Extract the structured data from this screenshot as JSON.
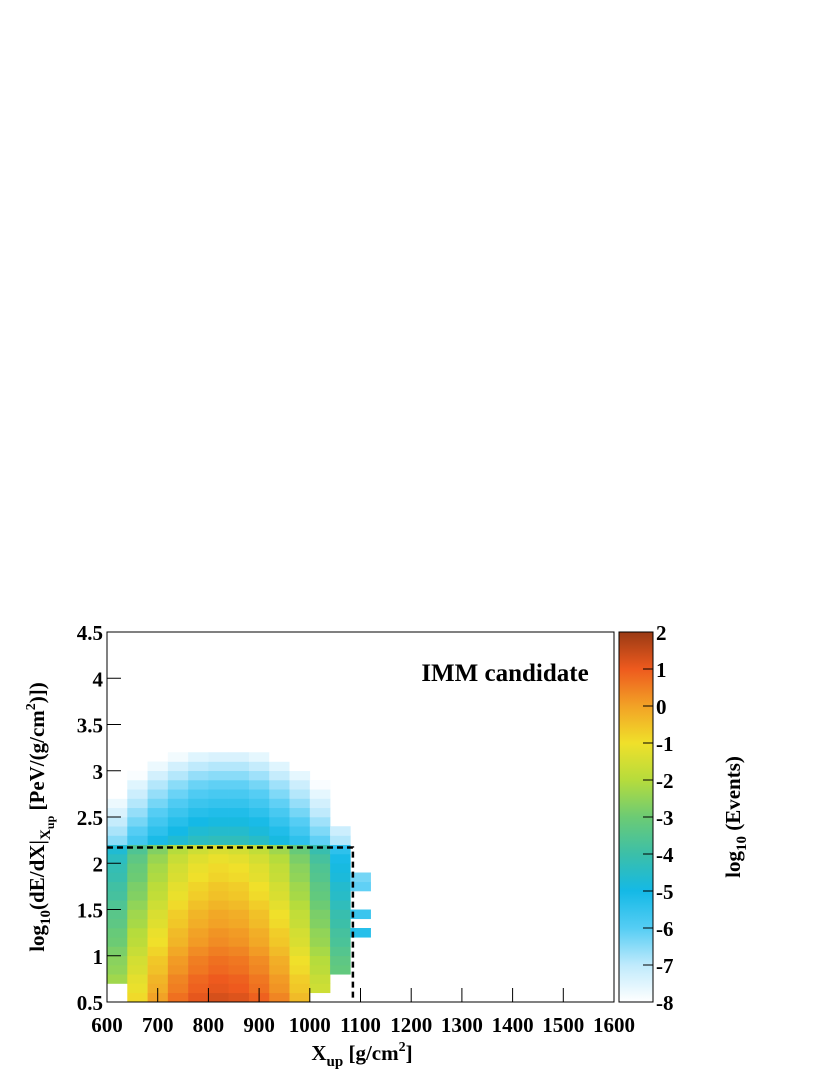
{
  "chart_data": {
    "type": "heatmap",
    "annotation": "IMM candidate",
    "xlabel": [
      {
        "text": "X",
        "script": ""
      },
      {
        "text": "up",
        "script": "sub"
      },
      {
        "text": " [g/cm",
        "script": ""
      },
      {
        "text": "2",
        "script": "sup"
      },
      {
        "text": "]",
        "script": ""
      }
    ],
    "ylabel": [
      {
        "text": "log",
        "script": ""
      },
      {
        "text": "10",
        "script": "sub"
      },
      {
        "text": "(dE/dX|",
        "script": ""
      },
      {
        "text": "X",
        "script": "sub"
      },
      {
        "text": "up",
        "script": "subsub"
      },
      {
        "text": " [PeV/(g/cm",
        "script": ""
      },
      {
        "text": "2",
        "script": "sup"
      },
      {
        "text": ")])",
        "script": ""
      }
    ],
    "zlabel": [
      {
        "text": "log",
        "script": ""
      },
      {
        "text": "10",
        "script": "sub"
      },
      {
        "text": " (Events)",
        "script": ""
      }
    ],
    "xlim": [
      600,
      1600
    ],
    "xticks": [
      600,
      700,
      800,
      900,
      1000,
      1100,
      1200,
      1300,
      1400,
      1500,
      1600
    ],
    "ylim": [
      0.5,
      4.5
    ],
    "yticks": [
      0.5,
      1,
      1.5,
      2,
      2.5,
      3,
      3.5,
      4,
      4.5
    ],
    "zlim": [
      -8,
      2
    ],
    "zticks": [
      -8,
      -7,
      -6,
      -5,
      -4,
      -3,
      -2,
      -1,
      0,
      1,
      2
    ],
    "palette": [
      "#ffffff",
      "#bfeafc",
      "#55cdf4",
      "#14b9e6",
      "#3cbfa8",
      "#6ccb74",
      "#b6dc3c",
      "#f0e02a",
      "#f2a226",
      "#ee5a1e",
      "#9a3a14"
    ],
    "cut": {
      "x": 1085,
      "y": 2.17,
      "color": "#000000"
    },
    "xbins": [
      600,
      640,
      680,
      720,
      760,
      800,
      840,
      880,
      920,
      960,
      1000,
      1040,
      1080,
      1120,
      1160,
      1200
    ],
    "ybins": [
      0.5,
      0.6,
      0.7,
      0.8,
      0.9,
      1.0,
      1.1,
      1.2,
      1.3,
      1.4,
      1.5,
      1.6,
      1.7,
      1.8,
      1.9,
      2.0,
      2.1,
      2.2,
      2.3,
      2.4,
      2.5,
      2.6,
      2.7,
      2.8,
      2.9,
      3.0,
      3.1,
      3.2
    ],
    "z": [
      [
        null,
        -0.9,
        0.0,
        0.7,
        1.1,
        1.3,
        1.2,
        0.9,
        0.4,
        -0.4,
        null,
        null,
        null,
        null,
        null
      ],
      [
        null,
        -1.1,
        -0.2,
        0.5,
        0.9,
        1.1,
        1.0,
        0.7,
        0.2,
        -0.6,
        -1.6,
        null,
        null,
        null,
        null
      ],
      [
        -2.3,
        -1.2,
        -0.3,
        0.4,
        0.8,
        1.0,
        0.9,
        0.6,
        0.1,
        -0.7,
        -1.7,
        null,
        null,
        null,
        null
      ],
      [
        -2.5,
        -1.4,
        -0.5,
        0.2,
        0.6,
        0.8,
        0.7,
        0.4,
        -0.1,
        -0.9,
        -1.9,
        -3.2,
        null,
        null,
        null
      ],
      [
        -2.6,
        -1.5,
        -0.6,
        0.1,
        0.5,
        0.7,
        0.6,
        0.3,
        -0.2,
        -1.0,
        -2.0,
        -3.3,
        null,
        null,
        null
      ],
      [
        -2.8,
        -1.7,
        -0.8,
        -0.1,
        0.3,
        0.5,
        0.4,
        0.1,
        -0.4,
        -1.2,
        -2.2,
        -3.5,
        null,
        null,
        null
      ],
      [
        -3.0,
        -1.9,
        -1.0,
        -0.3,
        0.1,
        0.3,
        0.2,
        -0.1,
        -0.6,
        -1.4,
        -2.4,
        -3.7,
        null,
        null,
        null
      ],
      [
        -3.1,
        -2.0,
        -1.1,
        -0.4,
        0.0,
        0.2,
        0.1,
        -0.2,
        -0.7,
        -1.5,
        -2.5,
        -3.8,
        -5.3,
        null,
        null
      ],
      [
        -3.3,
        -2.2,
        -1.3,
        -0.6,
        -0.2,
        0.0,
        -0.1,
        -0.4,
        -0.9,
        -1.7,
        -2.7,
        -4.0,
        null,
        null,
        null
      ],
      [
        -3.4,
        -2.3,
        -1.4,
        -0.7,
        -0.3,
        -0.1,
        -0.2,
        -0.5,
        -1.0,
        -1.8,
        -2.8,
        -4.1,
        -5.6,
        null,
        null
      ],
      [
        -3.6,
        -2.5,
        -1.6,
        -0.9,
        -0.5,
        -0.3,
        -0.4,
        -0.7,
        -1.2,
        -2.0,
        -3.0,
        -4.3,
        null,
        null,
        null
      ],
      [
        -3.8,
        -2.7,
        -1.8,
        -1.1,
        -0.7,
        -0.5,
        -0.6,
        -0.9,
        -1.4,
        -2.2,
        -3.2,
        -4.5,
        null,
        null,
        null
      ],
      [
        -3.9,
        -2.8,
        -1.9,
        -1.2,
        -0.8,
        -0.6,
        -0.7,
        -1.0,
        -1.5,
        -2.3,
        -3.3,
        -4.6,
        -6.1,
        null,
        null
      ],
      [
        -4.1,
        -3.0,
        -2.1,
        -1.4,
        -1.0,
        -0.8,
        -0.9,
        -1.2,
        -1.7,
        -2.5,
        -3.5,
        -4.8,
        -6.3,
        null,
        null
      ],
      [
        -4.2,
        -3.1,
        -2.2,
        -1.5,
        -1.1,
        -0.9,
        -1.0,
        -1.3,
        -1.8,
        -2.6,
        -3.6,
        -4.9,
        null,
        null,
        null
      ],
      [
        -4.4,
        -3.3,
        -2.4,
        -1.7,
        -1.3,
        -1.1,
        -1.2,
        -1.5,
        -2.0,
        -2.8,
        -3.8,
        -5.1,
        null,
        null,
        null
      ],
      [
        -4.7,
        -3.6,
        -2.7,
        -2.0,
        -1.6,
        -1.4,
        -1.5,
        -1.8,
        -2.3,
        -3.1,
        -4.1,
        -5.4,
        null,
        null,
        null
      ],
      [
        -6.5,
        -5.7,
        -5.1,
        -4.7,
        -4.4,
        -4.3,
        -4.3,
        -4.5,
        -4.9,
        -5.4,
        -6.1,
        -6.9,
        null,
        null,
        null
      ],
      [
        -6.8,
        -6.0,
        -5.4,
        -5.0,
        -4.7,
        -4.6,
        -4.6,
        -4.8,
        -5.2,
        -5.7,
        -6.4,
        -7.2,
        null,
        null,
        null
      ],
      [
        -7.1,
        -6.3,
        -5.7,
        -5.3,
        -5.0,
        -4.9,
        -4.9,
        -5.1,
        -5.5,
        -6.0,
        -6.7,
        null,
        null,
        null,
        null
      ],
      [
        -7.4,
        -6.6,
        -6.0,
        -5.6,
        -5.3,
        -5.2,
        -5.2,
        -5.4,
        -5.8,
        -6.3,
        -7.0,
        null,
        null,
        null,
        null
      ],
      [
        -7.7,
        -6.9,
        -6.3,
        -5.9,
        -5.6,
        -5.5,
        -5.5,
        -5.7,
        -6.1,
        -6.6,
        -7.3,
        null,
        null,
        null,
        null
      ],
      [
        -8.0,
        -7.2,
        -6.6,
        -6.2,
        -5.9,
        -5.8,
        -5.8,
        -6.0,
        -6.4,
        -6.9,
        -7.6,
        null,
        null,
        null,
        null
      ],
      [
        null,
        -7.5,
        -6.9,
        -6.5,
        -6.2,
        -6.1,
        -6.1,
        -6.3,
        -6.7,
        -7.2,
        -7.9,
        null,
        null,
        null,
        null
      ],
      [
        null,
        -7.9,
        -7.3,
        -6.9,
        -6.6,
        -6.5,
        -6.5,
        -6.7,
        -7.1,
        -7.6,
        null,
        null,
        null,
        null,
        null
      ],
      [
        null,
        null,
        -7.7,
        -7.3,
        -7.0,
        -6.9,
        -6.9,
        -7.1,
        -7.5,
        -8.0,
        null,
        null,
        null,
        null,
        null
      ],
      [
        null,
        null,
        null,
        -7.8,
        -7.5,
        -7.4,
        -7.4,
        -7.6,
        -8.0,
        null,
        null,
        null,
        null,
        null,
        null
      ]
    ]
  }
}
